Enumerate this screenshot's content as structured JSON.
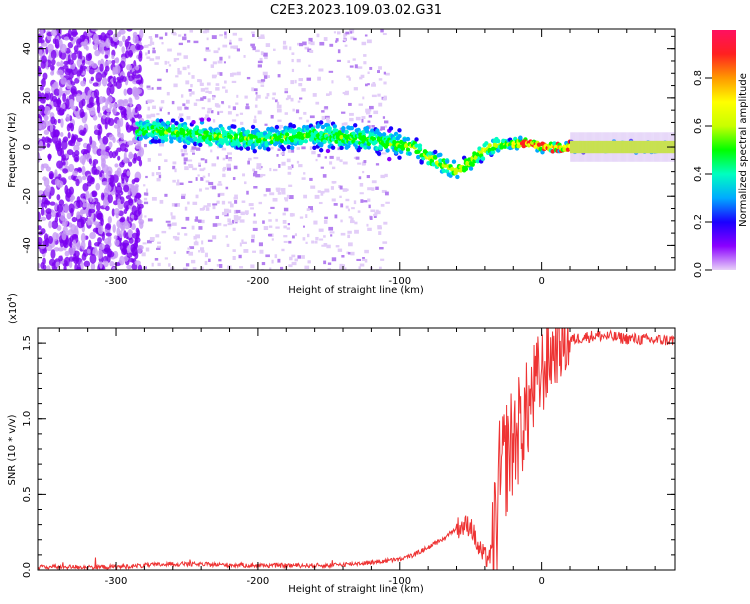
{
  "title": "C2E3.2023.109.03.02.G31",
  "chart_data": [
    {
      "type": "heatmap",
      "xlabel": "Height of straight line (km)",
      "ylabel": "Frequency (Hz)",
      "xlim": [
        -355,
        94
      ],
      "ylim": [
        -50,
        48
      ],
      "xticks": [
        -300,
        -200,
        -100,
        0
      ],
      "yticks": [
        -40,
        -20,
        0,
        20,
        40
      ],
      "colorbar": {
        "label": "Normalized spectral amplitude",
        "range": [
          0,
          1
        ],
        "ticks": [
          "0.0",
          "0.2",
          "0.4",
          "0.6",
          "0.8"
        ],
        "colors": [
          "#e8d0f8",
          "#8a00ff",
          "#1a00ff",
          "#00aaff",
          "#00ffc0",
          "#00ff00",
          "#c8ff00",
          "#ffff00",
          "#ff9900",
          "#ff2020",
          "#ff1060"
        ]
      },
      "ridge": {
        "x": [
          -280,
          -260,
          -240,
          -220,
          -200,
          -180,
          -160,
          -140,
          -120,
          -100,
          -90,
          -80,
          -70,
          -60,
          -50,
          -40,
          -30,
          -20,
          -10,
          0,
          10,
          20,
          40,
          60,
          94
        ],
        "y": [
          7,
          6,
          5,
          4,
          3,
          4,
          5,
          4,
          3,
          1,
          0,
          -4,
          -7,
          -10,
          -6,
          -1,
          1,
          1,
          2,
          0,
          0,
          0,
          0,
          0,
          0
        ]
      }
    },
    {
      "type": "line",
      "xlabel": "Height of straight line (km)",
      "ylabel": "SNR (10 * v/v)",
      "y_multiplier": "(x10",
      "y_multiplier_exp": "4",
      "xlim": [
        -355,
        94
      ],
      "ylim": [
        0,
        1.6
      ],
      "xticks": [
        -300,
        -200,
        -100,
        0
      ],
      "yticks": [
        "0.0",
        "0.5",
        "1.0",
        "1.5"
      ],
      "color": "#ee3333",
      "series": [
        {
          "x": [
            -355,
            -300,
            -260,
            -200,
            -150,
            -120,
            -100,
            -90,
            -80,
            -70,
            -60,
            -50,
            -45,
            -40,
            -35,
            -32,
            -30,
            -25,
            -20,
            -15,
            -10,
            -5,
            0,
            5,
            10,
            20,
            30,
            40,
            60,
            80,
            94
          ],
          "y": [
            0.02,
            0.02,
            0.04,
            0.03,
            0.03,
            0.05,
            0.07,
            0.1,
            0.15,
            0.2,
            0.28,
            0.3,
            0.15,
            0.08,
            0.1,
            0.3,
            0.55,
            0.75,
            0.85,
            0.95,
            1.05,
            1.2,
            1.3,
            1.4,
            1.48,
            1.52,
            1.54,
            1.55,
            1.53,
            1.52,
            1.52
          ]
        }
      ]
    }
  ]
}
